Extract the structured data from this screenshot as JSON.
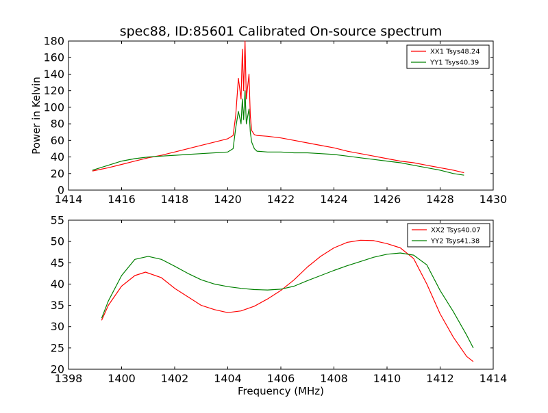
{
  "chart_data": [
    {
      "type": "line",
      "title": "spec88, ID:85601 Calibrated On-source spectrum",
      "xlabel": "",
      "ylabel": "Power in Kelvin",
      "xlim": [
        1414,
        1430
      ],
      "ylim": [
        0,
        180
      ],
      "xticks": [
        1414,
        1416,
        1418,
        1420,
        1422,
        1424,
        1426,
        1428,
        1430
      ],
      "yticks": [
        0,
        20,
        40,
        60,
        80,
        100,
        120,
        140,
        160,
        180
      ],
      "grid": false,
      "legend_position": "top-right",
      "series": [
        {
          "name": "XX1 Tsys48.24",
          "color": "#ff0000",
          "x": [
            1414.9,
            1415.5,
            1416.0,
            1416.5,
            1417.0,
            1417.5,
            1418.0,
            1418.5,
            1419.0,
            1419.5,
            1420.0,
            1420.2,
            1420.3,
            1420.4,
            1420.5,
            1420.55,
            1420.6,
            1420.65,
            1420.7,
            1420.8,
            1420.85,
            1420.9,
            1421.0,
            1421.1,
            1421.5,
            1422.0,
            1422.5,
            1423.0,
            1423.5,
            1424.0,
            1424.5,
            1425.0,
            1425.5,
            1426.0,
            1426.5,
            1427.0,
            1427.5,
            1428.0,
            1428.5,
            1428.9
          ],
          "y": [
            23,
            27,
            31,
            35,
            39,
            42,
            46,
            50,
            54,
            58,
            62,
            66,
            90,
            135,
            110,
            170,
            120,
            180,
            110,
            140,
            90,
            72,
            67,
            66,
            65,
            63,
            60,
            57,
            54,
            51,
            47,
            44,
            41,
            38,
            35,
            33,
            30,
            27,
            24,
            21
          ]
        },
        {
          "name": "YY1 Tsys40.39",
          "color": "#008000",
          "x": [
            1414.9,
            1415.5,
            1416.0,
            1416.5,
            1417.0,
            1417.5,
            1418.0,
            1418.5,
            1419.0,
            1419.5,
            1420.0,
            1420.2,
            1420.3,
            1420.4,
            1420.5,
            1420.55,
            1420.6,
            1420.65,
            1420.7,
            1420.8,
            1420.85,
            1420.9,
            1421.0,
            1421.1,
            1421.5,
            1422.0,
            1422.5,
            1423.0,
            1423.5,
            1424.0,
            1424.5,
            1425.0,
            1425.5,
            1426.0,
            1426.5,
            1427.0,
            1427.5,
            1428.0,
            1428.5,
            1428.9
          ],
          "y": [
            24,
            30,
            35,
            38,
            40,
            41,
            42,
            43,
            44,
            45,
            46,
            50,
            75,
            95,
            80,
            110,
            85,
            120,
            80,
            98,
            70,
            58,
            50,
            47,
            46,
            46,
            45,
            45,
            44,
            43,
            41,
            39,
            37,
            35,
            33,
            30,
            27,
            24,
            20,
            18
          ]
        }
      ]
    },
    {
      "type": "line",
      "title": "",
      "xlabel": "Frequency (MHz)",
      "ylabel": "",
      "xlim": [
        1398,
        1414
      ],
      "ylim": [
        20,
        55
      ],
      "xticks": [
        1398,
        1400,
        1402,
        1404,
        1406,
        1408,
        1410,
        1412,
        1414
      ],
      "yticks": [
        20,
        25,
        30,
        35,
        40,
        45,
        50,
        55
      ],
      "grid": false,
      "legend_position": "top-right",
      "series": [
        {
          "name": "XX2 Tsys40.07",
          "color": "#ff0000",
          "x": [
            1399.25,
            1399.5,
            1400.0,
            1400.5,
            1400.9,
            1401.5,
            1402.0,
            1402.5,
            1403.0,
            1403.5,
            1404.0,
            1404.5,
            1405.0,
            1405.5,
            1406.0,
            1406.5,
            1407.0,
            1407.5,
            1408.0,
            1408.5,
            1409.0,
            1409.5,
            1410.0,
            1410.5,
            1411.0,
            1411.5,
            1412.0,
            1412.5,
            1413.0,
            1413.25
          ],
          "y": [
            31.5,
            35,
            39.5,
            42,
            42.8,
            41.5,
            39,
            37,
            35,
            34,
            33.3,
            33.7,
            34.8,
            36.5,
            38.5,
            41,
            44,
            46.5,
            48.5,
            49.8,
            50.3,
            50.2,
            49.5,
            48.5,
            46,
            40,
            33,
            27.5,
            23,
            21.8
          ]
        },
        {
          "name": "YY2 Tsys41.38",
          "color": "#008000",
          "x": [
            1399.25,
            1399.5,
            1400.0,
            1400.5,
            1401.0,
            1401.5,
            1402.0,
            1402.5,
            1403.0,
            1403.5,
            1404.0,
            1404.5,
            1405.0,
            1405.5,
            1406.0,
            1406.5,
            1407.0,
            1407.5,
            1408.0,
            1408.5,
            1409.0,
            1409.5,
            1410.0,
            1410.5,
            1411.0,
            1411.5,
            1412.0,
            1412.5,
            1413.0,
            1413.25
          ],
          "y": [
            32,
            36,
            42,
            45.8,
            46.5,
            45.8,
            44.2,
            42.5,
            41,
            40,
            39.4,
            39,
            38.7,
            38.6,
            38.8,
            39.5,
            40.8,
            42,
            43.2,
            44.3,
            45.3,
            46.3,
            47,
            47.3,
            46.8,
            44.5,
            38.5,
            33.5,
            28,
            25
          ]
        }
      ]
    }
  ]
}
